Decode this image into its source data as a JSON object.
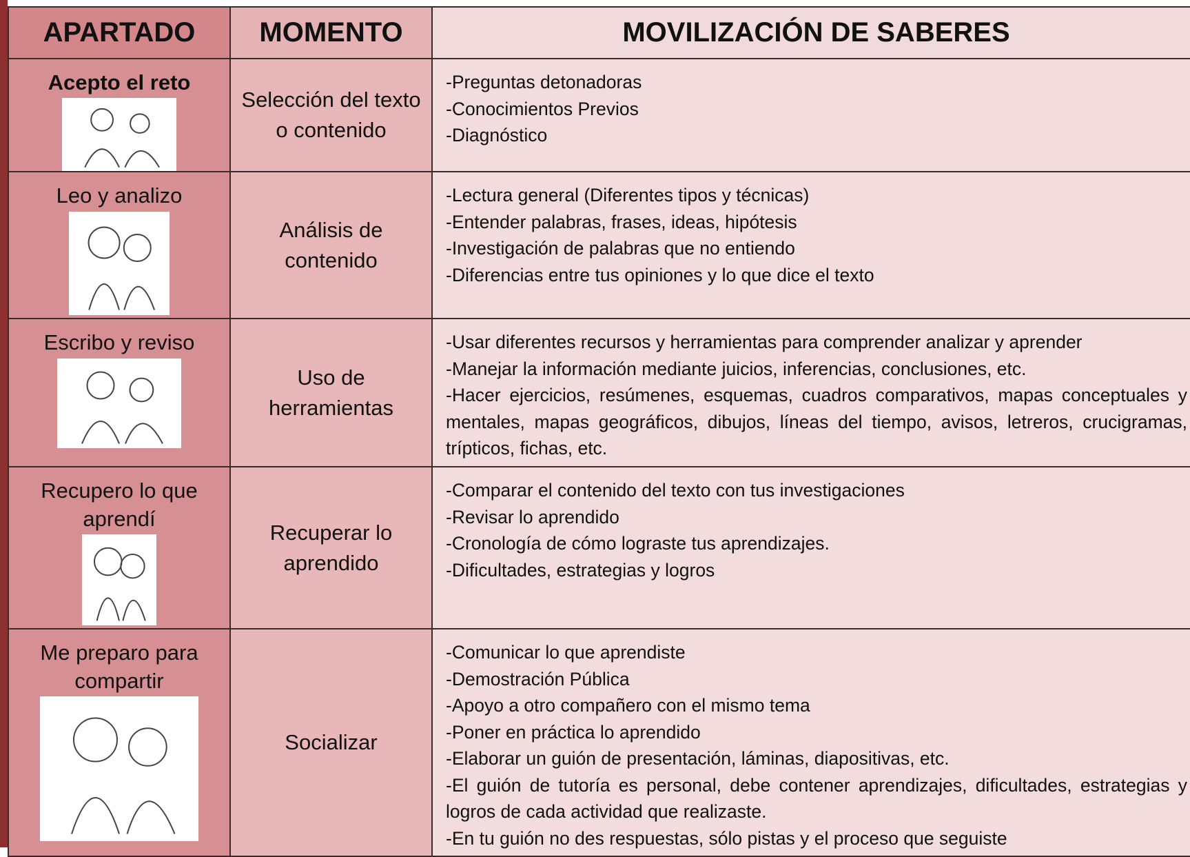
{
  "header": {
    "apartado": "APARTADO",
    "momento": "MOMENTO",
    "saberes": "MOVILIZACIÓN DE SABERES"
  },
  "rows": [
    {
      "apartado": "Acepto el reto",
      "momento": "Selección del texto o contenido",
      "items": [
        "-Preguntas detonadoras",
        "-Conocimientos Previos",
        "-Diagnóstico"
      ]
    },
    {
      "apartado": "Leo y analizo",
      "momento": "Análisis de contenido",
      "items": [
        "-Lectura general (Diferentes tipos y técnicas)",
        "-Entender palabras, frases, ideas, hipótesis",
        "-Investigación de palabras que no entiendo",
        "-Diferencias entre tus opiniones y lo que dice el texto"
      ]
    },
    {
      "apartado": "Escribo y reviso",
      "momento": "Uso de herramientas",
      "items": [
        "-Usar diferentes recursos y herramientas para comprender analizar y aprender",
        "-Manejar la información mediante juicios, inferencias, conclusiones, etc.",
        "-Hacer ejercicios, resúmenes, esquemas, cuadros comparativos, mapas conceptuales y mentales, mapas geográficos, dibujos, líneas del tiempo, avisos, letreros, crucigramas, trípticos, fichas, etc."
      ]
    },
    {
      "apartado": "Recupero lo que aprendí",
      "momento": "Recuperar lo aprendido",
      "items": [
        "-Comparar el contenido del texto con tus investigaciones",
        "-Revisar lo aprendido",
        "-Cronología de cómo lograste tus aprendizajes.",
        "-Dificultades, estrategias y logros"
      ]
    },
    {
      "apartado": "Me preparo para compartir",
      "momento": "Socializar",
      "items": [
        "-Comunicar lo que aprendiste",
        "-Demostración Pública",
        "-Apoyo a otro compañero con el mismo tema",
        "-Poner en práctica lo aprendido",
        "-Elaborar un guión de presentación, láminas, diapositivas, etc.",
        "-El guión de tutoría es personal, debe contener aprendizajes, dificultades, estrategias y logros de cada actividad que realizaste.",
        "-En tu guión no des respuestas, sólo pistas y el proceso que seguiste"
      ]
    }
  ]
}
